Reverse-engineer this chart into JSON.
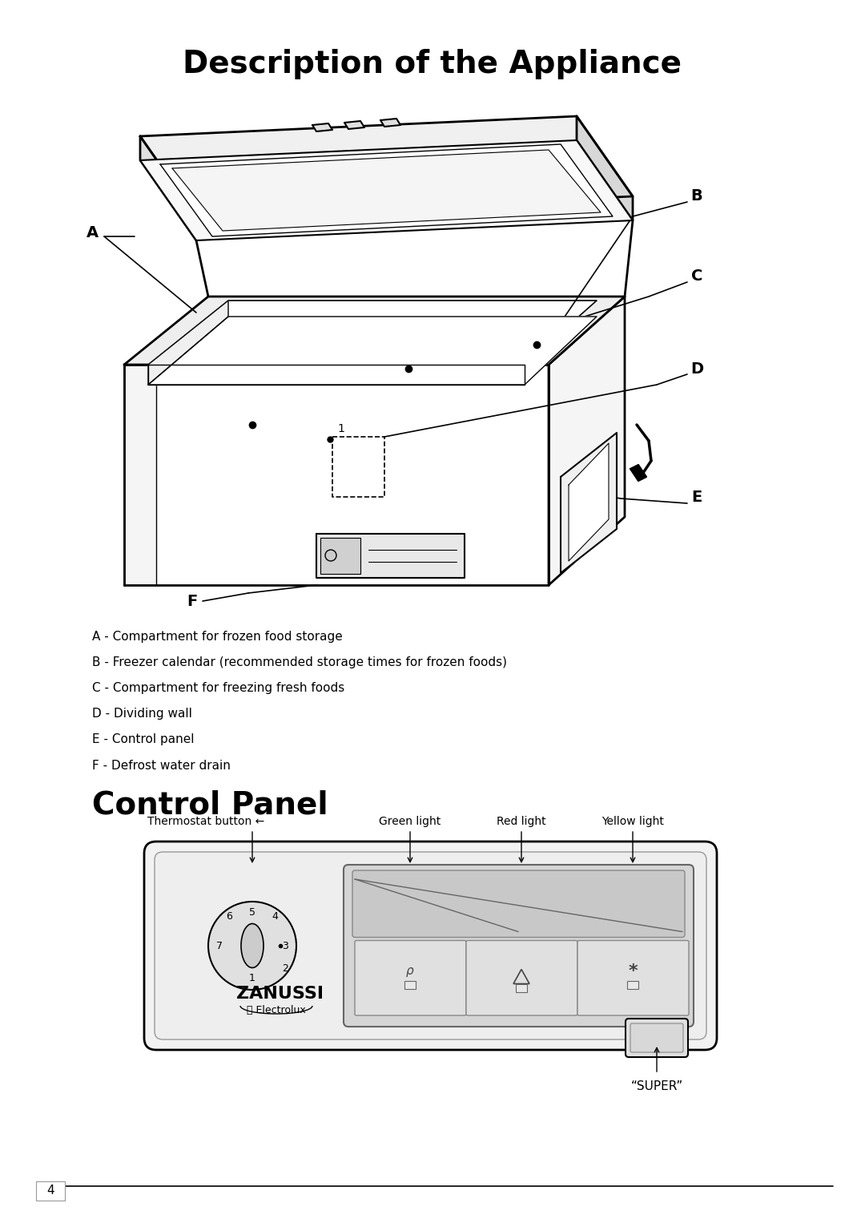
{
  "title": "Description of the Appliance",
  "section2_title": "Control Panel",
  "legend_items": [
    "A - Compartment for frozen food storage",
    "B - Freezer calendar (recommended storage times for frozen foods)",
    "C - Compartment for freezing fresh foods",
    "D - Dividing wall",
    "E - Control panel",
    "F - Defrost water drain"
  ],
  "control_labels": [
    "Thermostat button",
    "Green light",
    "Red light",
    "Yellow light"
  ],
  "super_label": "“SUPER”",
  "page_number": "4",
  "bg_color": "#ffffff",
  "text_color": "#000000",
  "line_color": "#000000"
}
